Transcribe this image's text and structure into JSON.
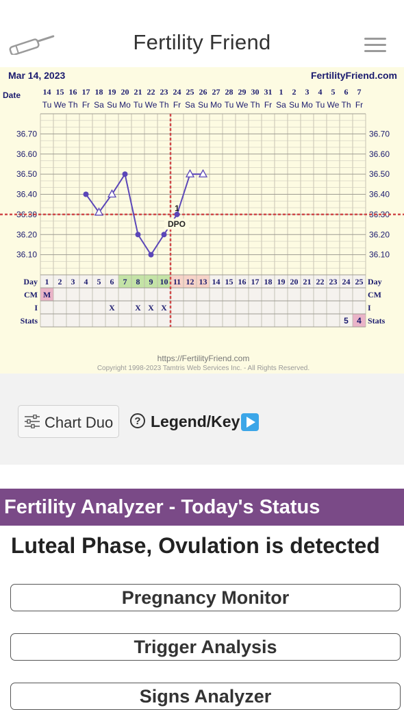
{
  "header": {
    "title": "Fertility Friend",
    "left_icon": "thermometer-icon",
    "right_icon": "menu-icon"
  },
  "chart": {
    "date_label": "Mar 14, 2023",
    "site": "FertilityFriend.com",
    "row_labels": {
      "date": "Date",
      "day": "Day",
      "cm": "CM",
      "i": "I",
      "stats": "Stats"
    },
    "dates": [
      "14",
      "15",
      "16",
      "17",
      "18",
      "19",
      "20",
      "21",
      "22",
      "23",
      "24",
      "25",
      "26",
      "27",
      "28",
      "29",
      "30",
      "31",
      "1",
      "2",
      "3",
      "4",
      "5",
      "6",
      "7"
    ],
    "weekdays": [
      "Tu",
      "We",
      "Th",
      "Fr",
      "Sa",
      "Su",
      "Mo",
      "Tu",
      "We",
      "Th",
      "Fr",
      "Sa",
      "Su",
      "Mo",
      "Tu",
      "We",
      "Th",
      "Fr",
      "Sa",
      "Su",
      "Mo",
      "Tu",
      "We",
      "Th",
      "Fr"
    ],
    "days": [
      "1",
      "2",
      "3",
      "4",
      "5",
      "6",
      "7",
      "8",
      "9",
      "10",
      "11",
      "12",
      "13",
      "14",
      "15",
      "16",
      "17",
      "18",
      "19",
      "20",
      "21",
      "22",
      "23",
      "24",
      "25"
    ],
    "y_ticks": [
      "36.70",
      "36.60",
      "36.50",
      "36.40",
      "36.30",
      "36.20",
      "36.10"
    ],
    "cm_row": {
      "day": 1,
      "value": "M"
    },
    "i_row": {
      "days": [
        6,
        8,
        9,
        10
      ],
      "mark": "X"
    },
    "stats_row": [
      {
        "day": 24,
        "value": "5"
      },
      {
        "day": 25,
        "value": "4"
      }
    ],
    "coverline_label": "DPO",
    "dpo_number": "1",
    "footer_url": "https://FertilityFriend.com",
    "copyright": "Copyright 1998-2023 Tamtris Web Services Inc. - All Rights Reserved.",
    "colors": {
      "line": "#5b46b8",
      "coverline": "#d04a4a",
      "background": "#fdfbe2",
      "fertile": "#c4e3a6",
      "luteal": "#f6d3c8",
      "highlight": "#eab4c8"
    }
  },
  "chart_data": {
    "type": "line",
    "x_unit": "cycle day",
    "ylim": [
      36.0,
      36.8
    ],
    "coverline": 36.3,
    "ovulation_day": 10,
    "points": [
      {
        "day": 4,
        "temp": 36.4,
        "marker": "filled"
      },
      {
        "day": 5,
        "temp": 36.31,
        "marker": "open-triangle"
      },
      {
        "day": 6,
        "temp": 36.4,
        "marker": "open-triangle"
      },
      {
        "day": 7,
        "temp": 36.5,
        "marker": "filled"
      },
      {
        "day": 8,
        "temp": 36.2,
        "marker": "filled"
      },
      {
        "day": 9,
        "temp": 36.1,
        "marker": "filled"
      },
      {
        "day": 10,
        "temp": 36.2,
        "marker": "filled"
      },
      {
        "day": 11,
        "temp": 36.3,
        "marker": "filled"
      },
      {
        "day": 12,
        "temp": 36.5,
        "marker": "open-triangle"
      },
      {
        "day": 13,
        "temp": 36.5,
        "marker": "open-triangle"
      }
    ],
    "fertile_days": [
      7,
      8,
      9,
      10
    ],
    "luteal_days": [
      11,
      12,
      13
    ]
  },
  "toolbar": {
    "duo_label": "Chart Duo",
    "legend_label": "Legend/Key"
  },
  "analyzer": {
    "title": "Fertility Analyzer - Today's Status",
    "status": "Luteal Phase, Ovulation is detected",
    "buttons": [
      "Pregnancy Monitor",
      "Trigger Analysis",
      "Signs Analyzer"
    ]
  }
}
